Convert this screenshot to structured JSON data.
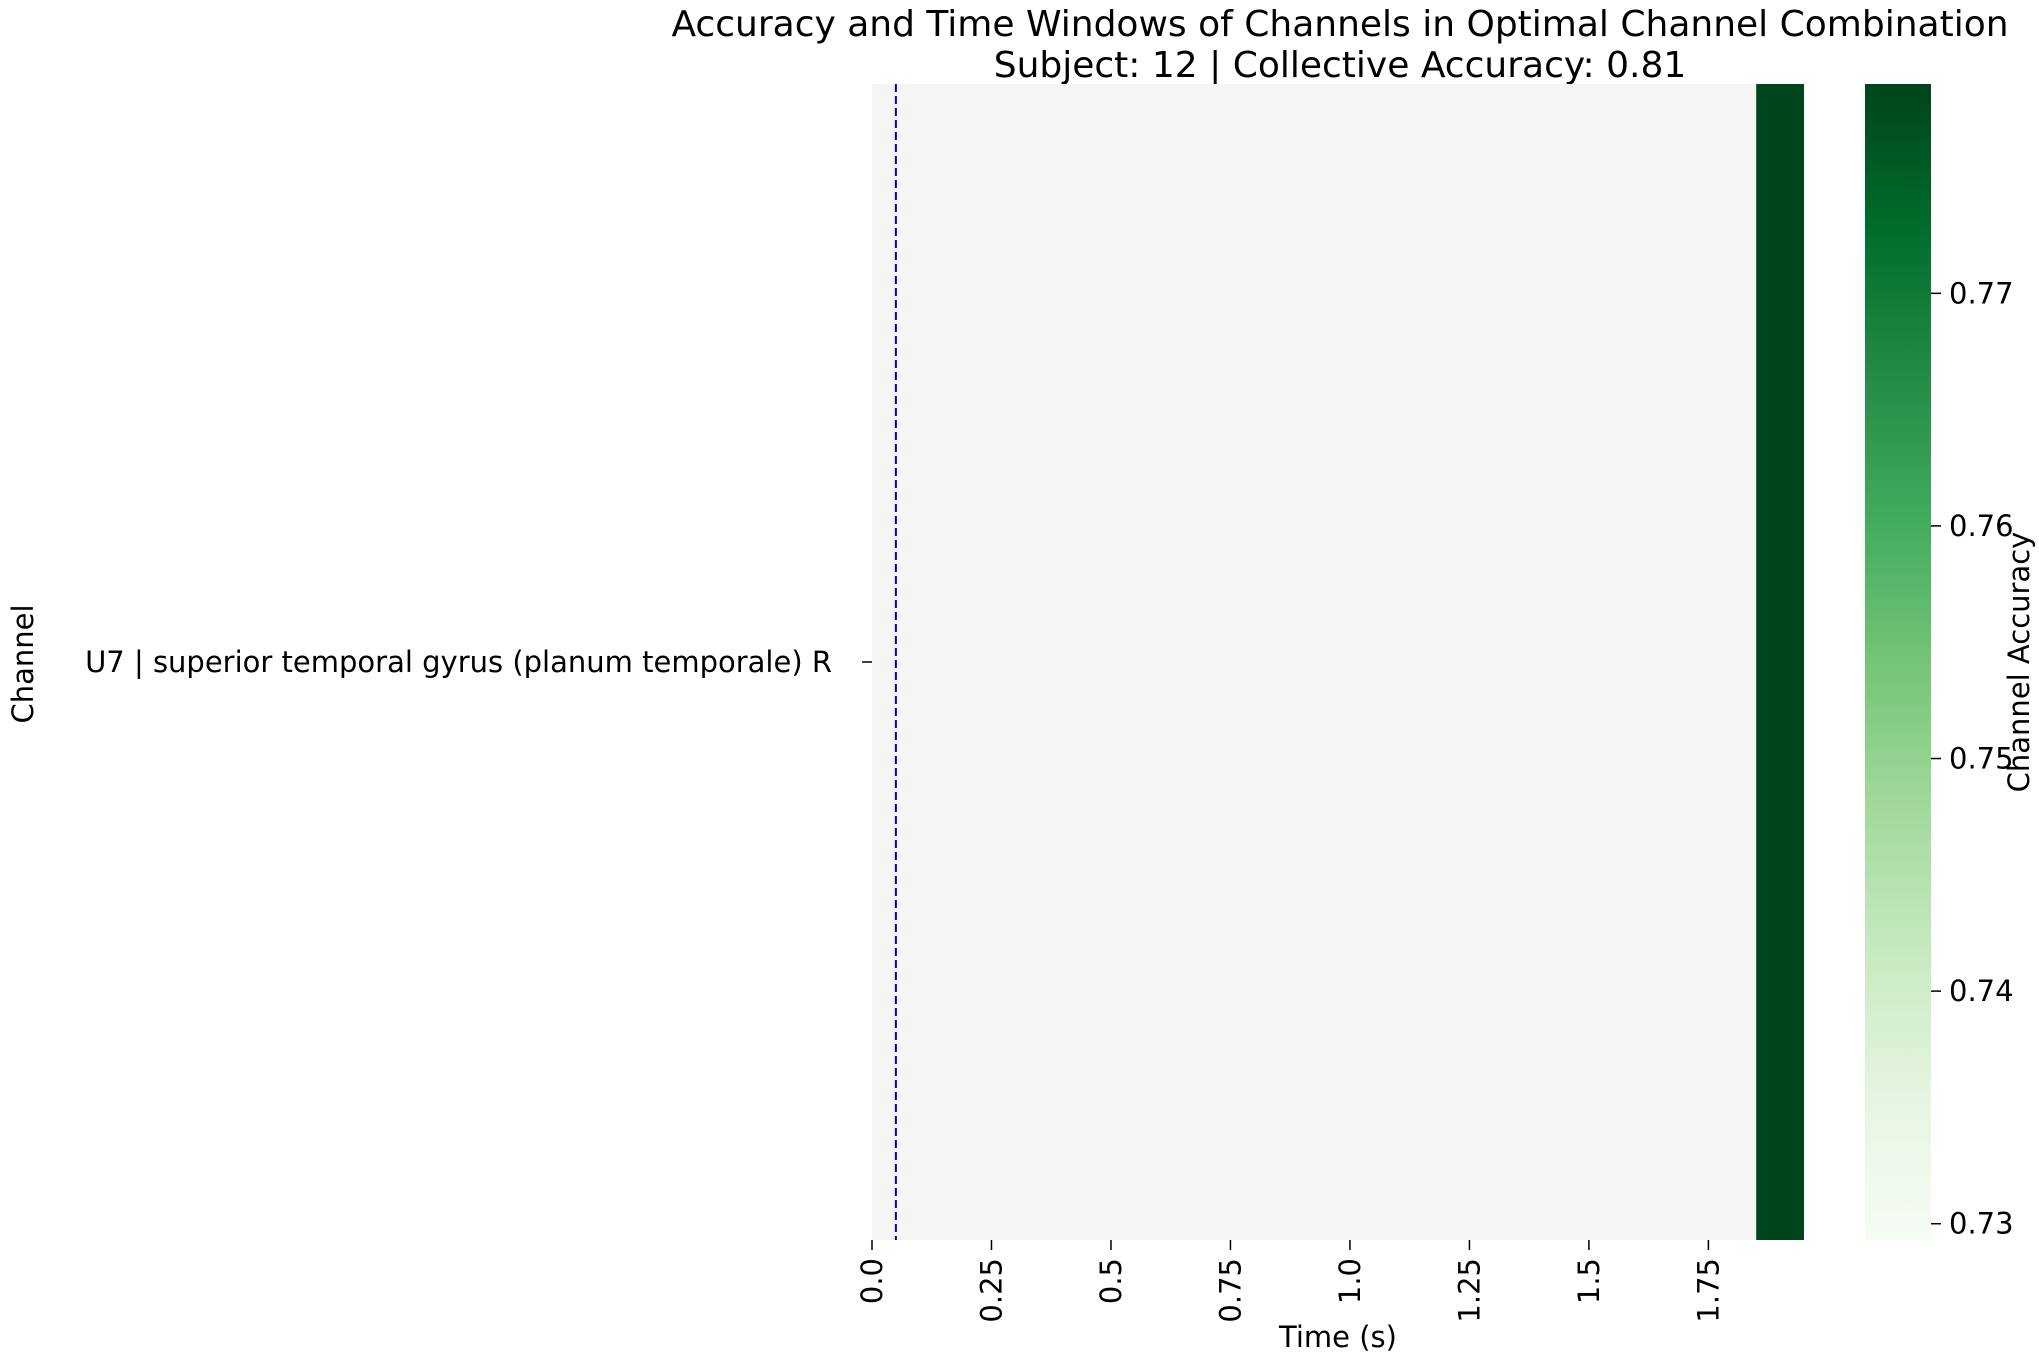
{
  "chart_data": {
    "type": "heatmap",
    "title": "Accuracy and Time Windows of Channels in Optimal Channel Combination",
    "subtitle": "Subject: 12 | Collective Accuracy: 0.81",
    "xlabel": "Time (s)",
    "ylabel": "Channel",
    "x_tick_labels": [
      "0.0",
      "0.25",
      "0.5",
      "0.75",
      "1.0",
      "1.25",
      "1.5",
      "1.75"
    ],
    "x_ticks": [
      0.0,
      0.25,
      0.5,
      0.75,
      1.0,
      1.25,
      1.5,
      1.75
    ],
    "xlim": [
      0.0,
      1.95
    ],
    "rows": [
      {
        "label": "U7 | superior temporal gyrus (planum temporale) R",
        "windows": [
          {
            "start": 1.85,
            "end": 2.0,
            "value": 0.779
          }
        ]
      }
    ],
    "vline": {
      "x": 0.05,
      "style": "dashed",
      "color": "#0000cc"
    },
    "colorbar": {
      "label": "Channel Accuracy",
      "range": [
        0.7293,
        0.779
      ],
      "ticks": [
        0.73,
        0.74,
        0.75,
        0.76,
        0.77
      ],
      "tick_labels": [
        "0.73",
        "0.74",
        "0.75",
        "0.76",
        "0.77"
      ],
      "colormap": "Greens",
      "stops": [
        "#f7fcf5",
        "#e5f5e0",
        "#c7e9c0",
        "#a1d99b",
        "#74c476",
        "#41ab5d",
        "#238b45",
        "#006d2c",
        "#00441b"
      ]
    },
    "background_color": "#f5f5f5",
    "grid": false
  }
}
